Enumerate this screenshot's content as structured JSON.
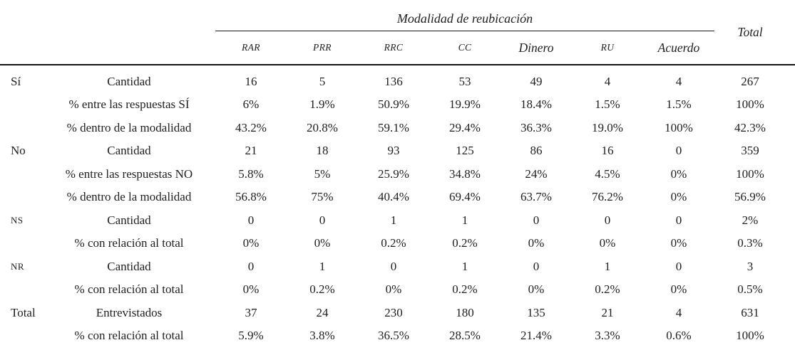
{
  "table": {
    "spanner": "Modalidad de reubicación",
    "total_header": "Total",
    "text_color": "#1f1f1f",
    "rule_color": "#161616",
    "columns": [
      {
        "label": "RAR",
        "caps": true
      },
      {
        "label": "PRR",
        "caps": true
      },
      {
        "label": "RRC",
        "caps": true
      },
      {
        "label": "CC",
        "caps": true
      },
      {
        "label": "Dinero",
        "caps": false
      },
      {
        "label": "RU",
        "caps": true
      },
      {
        "label": "Acuerdo",
        "caps": false
      }
    ],
    "rows": [
      {
        "group": "Sí",
        "caps": false,
        "label": "Cantidad",
        "values": [
          "16",
          "5",
          "136",
          "53",
          "49",
          "4",
          "4",
          "267"
        ]
      },
      {
        "group": "",
        "caps": false,
        "label": "% entre las respuestas SÍ",
        "values": [
          "6%",
          "1.9%",
          "50.9%",
          "19.9%",
          "18.4%",
          "1.5%",
          "1.5%",
          "100%"
        ]
      },
      {
        "group": "",
        "caps": false,
        "label": "% dentro de la modalidad",
        "values": [
          "43.2%",
          "20.8%",
          "59.1%",
          "29.4%",
          "36.3%",
          "19.0%",
          "100%",
          "42.3%"
        ]
      },
      {
        "group": "No",
        "caps": false,
        "label": "Cantidad",
        "values": [
          "21",
          "18",
          "93",
          "125",
          "86",
          "16",
          "0",
          "359"
        ]
      },
      {
        "group": "",
        "caps": false,
        "label": "% entre las respuestas NO",
        "values": [
          "5.8%",
          "5%",
          "25.9%",
          "34.8%",
          "24%",
          "4.5%",
          "0%",
          "100%"
        ]
      },
      {
        "group": "",
        "caps": false,
        "label": "% dentro de la modalidad",
        "values": [
          "56.8%",
          "75%",
          "40.4%",
          "69.4%",
          "63.7%",
          "76.2%",
          "0%",
          "56.9%"
        ]
      },
      {
        "group": "NS",
        "caps": true,
        "label": "Cantidad",
        "values": [
          "0",
          "0",
          "1",
          "1",
          "0",
          "0",
          "0",
          "2%"
        ]
      },
      {
        "group": "",
        "caps": false,
        "label": "% con relación al total",
        "values": [
          "0%",
          "0%",
          "0.2%",
          "0.2%",
          "0%",
          "0%",
          "0%",
          "0.3%"
        ]
      },
      {
        "group": "NR",
        "caps": true,
        "label": "Cantidad",
        "values": [
          "0",
          "1",
          "0",
          "1",
          "0",
          "1",
          "0",
          "3"
        ]
      },
      {
        "group": "",
        "caps": false,
        "label": "% con relación al total",
        "values": [
          "0%",
          "0.2%",
          "0%",
          "0.2%",
          "0%",
          "0.2%",
          "0%",
          "0.5%"
        ]
      },
      {
        "group": "Total",
        "caps": false,
        "label": "Entrevistados",
        "values": [
          "37",
          "24",
          "230",
          "180",
          "135",
          "21",
          "4",
          "631"
        ]
      },
      {
        "group": "",
        "caps": false,
        "label": "% con relación al total",
        "values": [
          "5.9%",
          "3.8%",
          "36.5%",
          "28.5%",
          "21.4%",
          "3.3%",
          "0.6%",
          "100%"
        ]
      }
    ]
  }
}
